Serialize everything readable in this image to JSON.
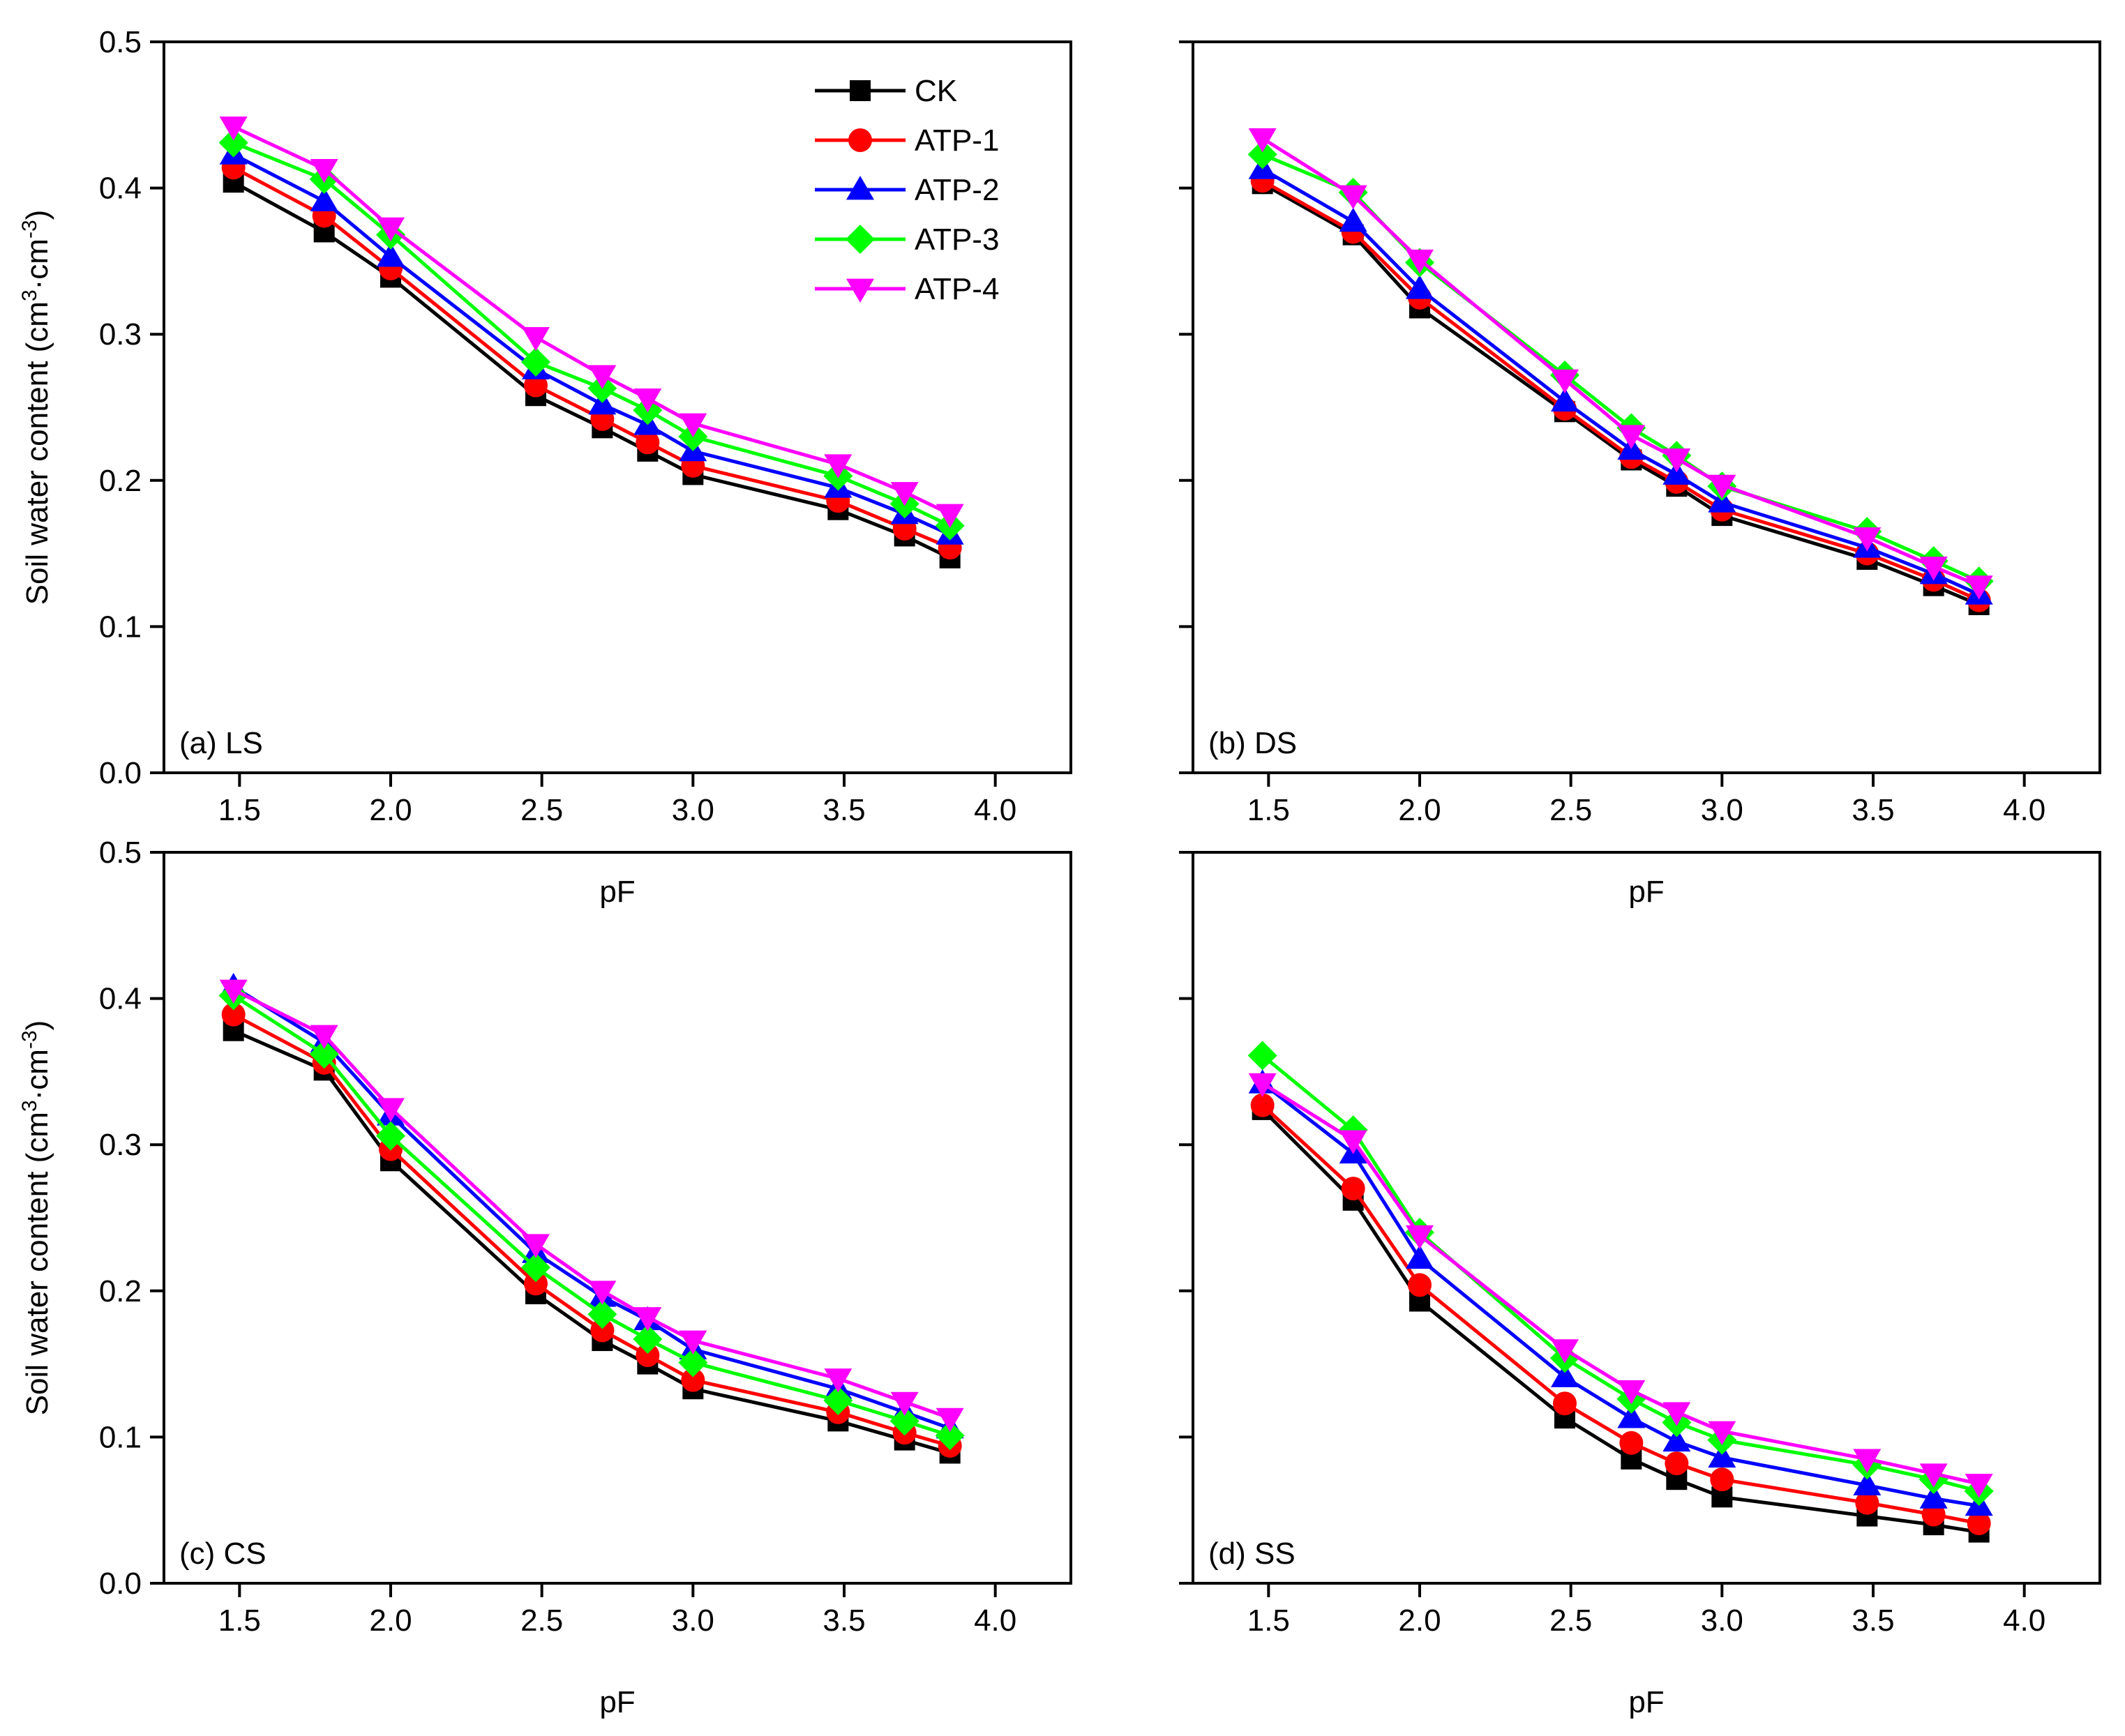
{
  "chart_data": [
    {
      "type": "line",
      "panel_label": "(a) LS",
      "xlabel": "pF",
      "ylabel": "Soil water content (cm³·cm⁻³)",
      "xlim": [
        1.25,
        4.25
      ],
      "ylim": [
        0.0,
        0.5
      ],
      "x": [
        1.48,
        1.78,
        2.0,
        2.48,
        2.7,
        2.85,
        3.0,
        3.48,
        3.7,
        3.85
      ],
      "series": [
        {
          "name": "CK",
          "values": [
            0.404,
            0.37,
            0.339,
            0.258,
            0.236,
            0.22,
            0.204,
            0.18,
            0.162,
            0.147
          ]
        },
        {
          "name": "ATP-1",
          "values": [
            0.414,
            0.381,
            0.345,
            0.265,
            0.242,
            0.226,
            0.21,
            0.186,
            0.167,
            0.154
          ]
        },
        {
          "name": "ATP-2",
          "values": [
            0.423,
            0.391,
            0.353,
            0.276,
            0.252,
            0.238,
            0.22,
            0.195,
            0.177,
            0.163
          ]
        },
        {
          "name": "ATP-3",
          "values": [
            0.431,
            0.406,
            0.368,
            0.281,
            0.263,
            0.248,
            0.23,
            0.203,
            0.184,
            0.169
          ]
        },
        {
          "name": "ATP-4",
          "values": [
            0.442,
            0.413,
            0.373,
            0.298,
            0.272,
            0.256,
            0.239,
            0.211,
            0.192,
            0.177
          ]
        }
      ]
    },
    {
      "type": "line",
      "panel_label": "(b) DS",
      "xlabel": "pF",
      "ylabel": "",
      "xlim": [
        1.25,
        4.25
      ],
      "ylim": [
        0.0,
        0.5
      ],
      "x": [
        1.48,
        1.78,
        2.0,
        2.48,
        2.7,
        2.85,
        3.0,
        3.48,
        3.7,
        3.85
      ],
      "series": [
        {
          "name": "CK",
          "values": [
            0.403,
            0.368,
            0.318,
            0.247,
            0.214,
            0.196,
            0.176,
            0.146,
            0.128,
            0.115
          ]
        },
        {
          "name": "ATP-1",
          "values": [
            0.405,
            0.37,
            0.325,
            0.249,
            0.216,
            0.199,
            0.18,
            0.15,
            0.132,
            0.118
          ]
        },
        {
          "name": "ATP-2",
          "values": [
            0.413,
            0.377,
            0.331,
            0.254,
            0.221,
            0.204,
            0.185,
            0.154,
            0.136,
            0.122
          ]
        },
        {
          "name": "ATP-3",
          "values": [
            0.423,
            0.397,
            0.349,
            0.272,
            0.236,
            0.217,
            0.196,
            0.165,
            0.145,
            0.131
          ]
        },
        {
          "name": "ATP-4",
          "values": [
            0.434,
            0.395,
            0.351,
            0.269,
            0.231,
            0.215,
            0.197,
            0.161,
            0.141,
            0.128
          ]
        }
      ]
    },
    {
      "type": "line",
      "panel_label": "(c) CS",
      "xlabel": "pF",
      "ylabel": "Soil water content (cm³·cm⁻³)",
      "xlim": [
        1.25,
        4.25
      ],
      "ylim": [
        0.0,
        0.5
      ],
      "x": [
        1.48,
        1.78,
        2.0,
        2.48,
        2.7,
        2.85,
        3.0,
        3.48,
        3.7,
        3.85
      ],
      "series": [
        {
          "name": "CK",
          "values": [
            0.378,
            0.351,
            0.289,
            0.198,
            0.166,
            0.15,
            0.133,
            0.111,
            0.098,
            0.089
          ]
        },
        {
          "name": "ATP-1",
          "values": [
            0.389,
            0.356,
            0.297,
            0.205,
            0.173,
            0.156,
            0.139,
            0.117,
            0.103,
            0.094
          ]
        },
        {
          "name": "ATP-2",
          "values": [
            0.408,
            0.37,
            0.32,
            0.226,
            0.196,
            0.18,
            0.16,
            0.133,
            0.117,
            0.106
          ]
        },
        {
          "name": "ATP-3",
          "values": [
            0.402,
            0.362,
            0.306,
            0.216,
            0.184,
            0.167,
            0.151,
            0.125,
            0.111,
            0.101
          ]
        },
        {
          "name": "ATP-4",
          "values": [
            0.406,
            0.375,
            0.325,
            0.232,
            0.2,
            0.182,
            0.166,
            0.14,
            0.124,
            0.113
          ]
        }
      ]
    },
    {
      "type": "line",
      "panel_label": "(d) SS",
      "xlabel": "pF",
      "ylabel": "",
      "xlim": [
        1.25,
        4.25
      ],
      "ylim": [
        0.0,
        0.5
      ],
      "x": [
        1.48,
        1.78,
        2.0,
        2.48,
        2.7,
        2.85,
        3.0,
        3.48,
        3.7,
        3.85
      ],
      "series": [
        {
          "name": "CK",
          "values": [
            0.324,
            0.262,
            0.193,
            0.113,
            0.085,
            0.071,
            0.059,
            0.046,
            0.04,
            0.035
          ]
        },
        {
          "name": "ATP-1",
          "values": [
            0.327,
            0.27,
            0.204,
            0.123,
            0.096,
            0.082,
            0.071,
            0.055,
            0.047,
            0.041
          ]
        },
        {
          "name": "ATP-2",
          "values": [
            0.342,
            0.294,
            0.222,
            0.141,
            0.113,
            0.097,
            0.086,
            0.067,
            0.058,
            0.053
          ]
        },
        {
          "name": "ATP-3",
          "values": [
            0.361,
            0.31,
            0.24,
            0.154,
            0.126,
            0.11,
            0.098,
            0.081,
            0.071,
            0.063
          ]
        },
        {
          "name": "ATP-4",
          "values": [
            0.342,
            0.303,
            0.238,
            0.16,
            0.132,
            0.117,
            0.104,
            0.085,
            0.075,
            0.068
          ]
        }
      ]
    }
  ],
  "legend": [
    "CK",
    "ATP-1",
    "ATP-2",
    "ATP-3",
    "ATP-4"
  ],
  "legend_placement": "top-right of panel (a)",
  "series_styles": {
    "CK": {
      "color": "#000000",
      "marker": "square"
    },
    "ATP-1": {
      "color": "#ff0000",
      "marker": "circle"
    },
    "ATP-2": {
      "color": "#0000ff",
      "marker": "triangle-up"
    },
    "ATP-3": {
      "color": "#00ff00",
      "marker": "diamond"
    },
    "ATP-4": {
      "color": "#ff00ff",
      "marker": "triangle-down"
    }
  },
  "x_ticks": [
    1.5,
    2.0,
    2.5,
    3.0,
    3.5,
    4.0
  ],
  "y_ticks": [
    0.0,
    0.1,
    0.2,
    0.3,
    0.4,
    0.5
  ],
  "axis_labels": {
    "xlabel": "pF",
    "ylabel_main": "Soil water content (cm",
    "ylabel_sup1": "3",
    "ylabel_mid": "·cm",
    "ylabel_sup2": "-3",
    "ylabel_end": ")"
  }
}
